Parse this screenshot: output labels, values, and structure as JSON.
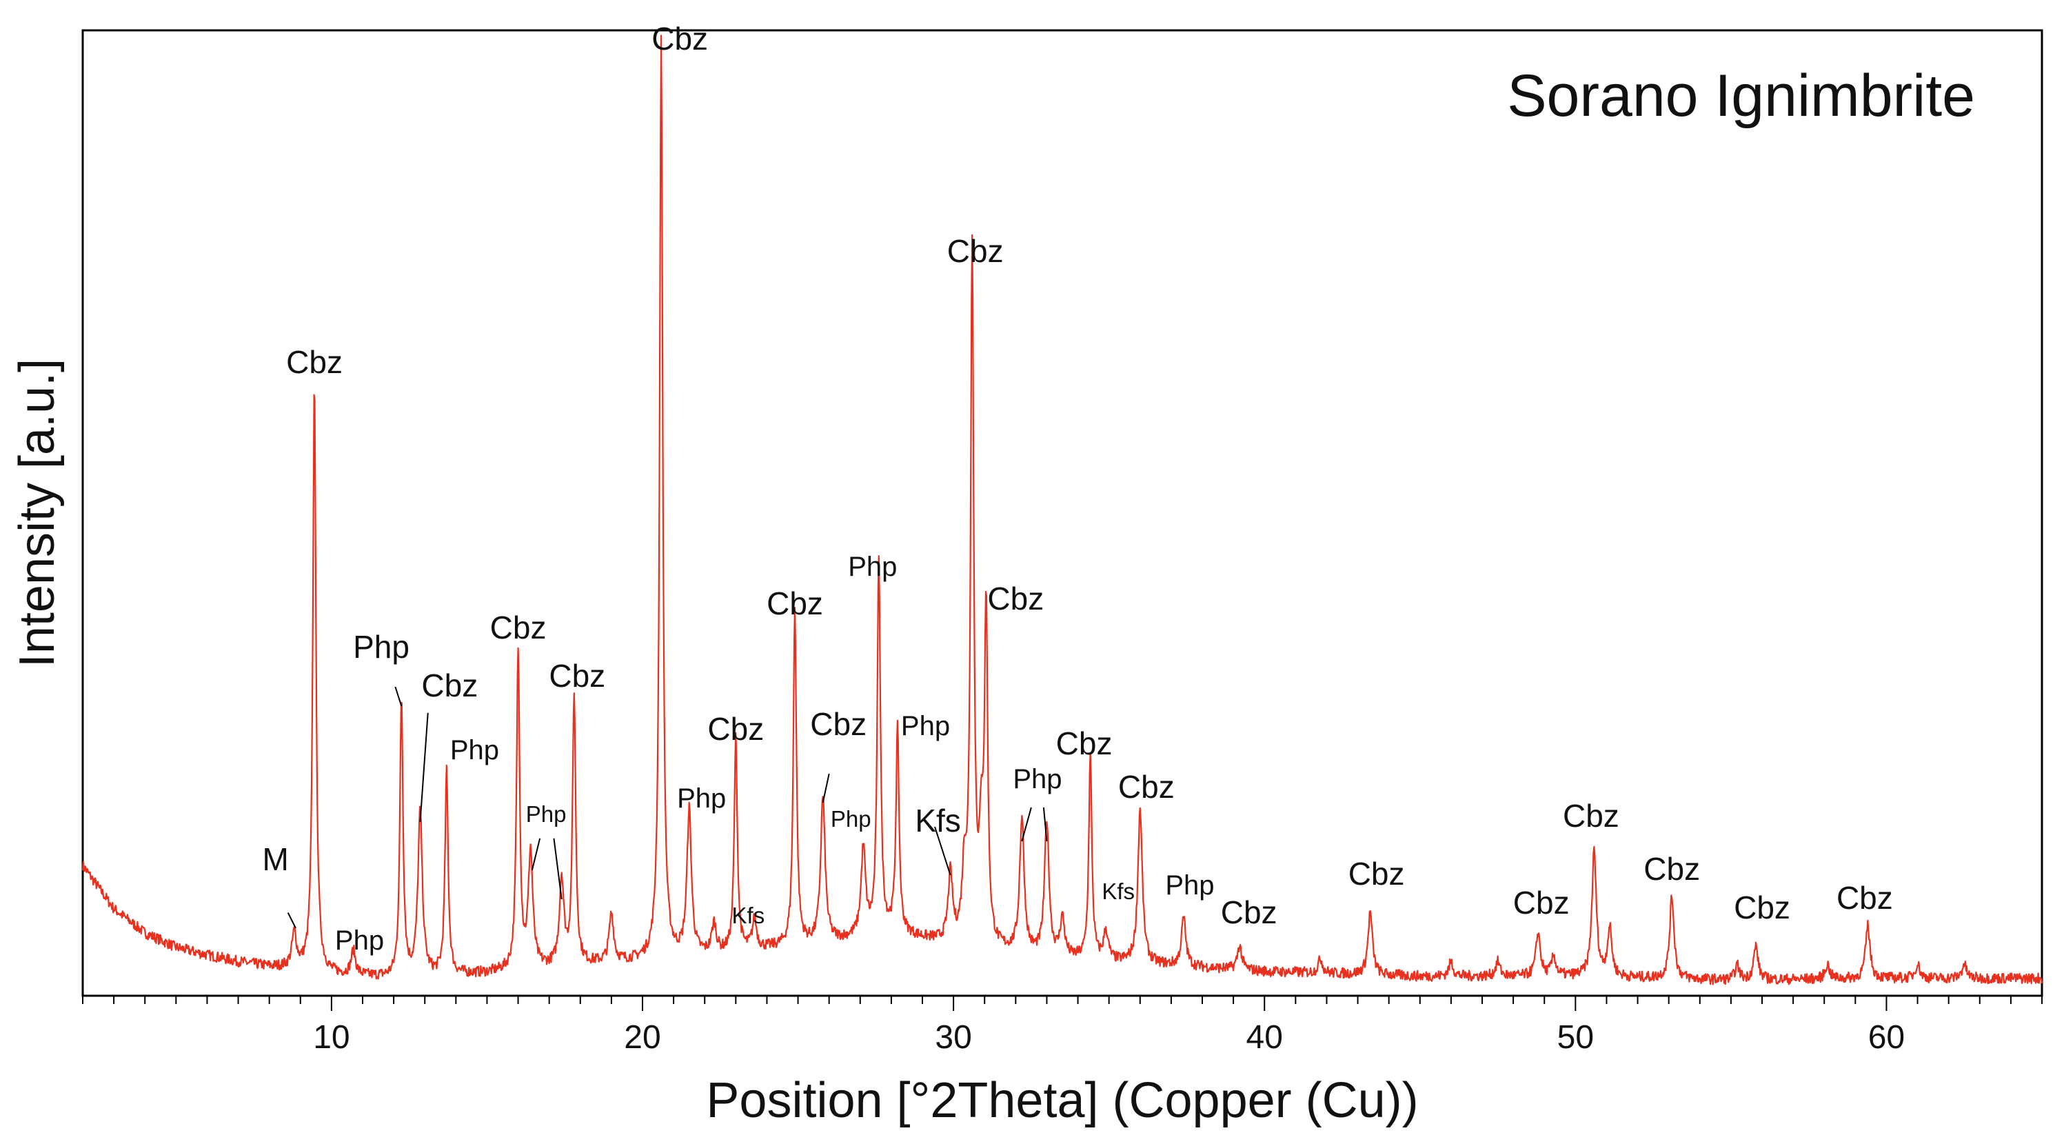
{
  "chart_data": {
    "type": "line",
    "title": "Sorano Ignimbrite",
    "xlabel": "Position [°2Theta] (Copper (Cu))",
    "ylabel": "Intensity [a.u.]",
    "xlim": [
      2,
      65
    ],
    "ylim": [
      0,
      100
    ],
    "grid": false,
    "series_color": "#e8301e",
    "x_tick_labels": [
      {
        "value": 10,
        "text": "10"
      },
      {
        "value": 20,
        "text": "20"
      },
      {
        "value": 30,
        "text": "30"
      },
      {
        "value": 40,
        "text": "40"
      },
      {
        "value": 50,
        "text": "50"
      },
      {
        "value": 60,
        "text": "60"
      }
    ],
    "baseline": [
      [
        2,
        13.5
      ],
      [
        3,
        9
      ],
      [
        4,
        6.5
      ],
      [
        5,
        5
      ],
      [
        6,
        4.2
      ],
      [
        7,
        3.5
      ],
      [
        8,
        3
      ],
      [
        9,
        2.8
      ],
      [
        10,
        2.2
      ],
      [
        12,
        1.8
      ],
      [
        15,
        2.3
      ],
      [
        18,
        3.2
      ],
      [
        20,
        3.6
      ],
      [
        23,
        4.5
      ],
      [
        26,
        5.5
      ],
      [
        28,
        6.5
      ],
      [
        30,
        5.2
      ],
      [
        33,
        4
      ],
      [
        36,
        3.3
      ],
      [
        40,
        2.5
      ],
      [
        45,
        2
      ],
      [
        50,
        2
      ],
      [
        55,
        1.6
      ],
      [
        60,
        1.8
      ],
      [
        65,
        1.8
      ]
    ],
    "peaks": [
      {
        "x": 8.8,
        "height": 3.5,
        "phase": "M"
      },
      {
        "x": 9.45,
        "height": 61,
        "phase": "Cbz"
      },
      {
        "x": 10.7,
        "height": 2.5,
        "phase": "Php"
      },
      {
        "x": 12.25,
        "height": 29,
        "phase": "Php"
      },
      {
        "x": 12.85,
        "height": 17,
        "phase": "Cbz"
      },
      {
        "x": 13.7,
        "height": 21,
        "phase": "Php"
      },
      {
        "x": 16.0,
        "height": 33,
        "phase": "Cbz"
      },
      {
        "x": 16.4,
        "height": 12,
        "phase": "Php"
      },
      {
        "x": 17.4,
        "height": 9,
        "phase": "Php"
      },
      {
        "x": 17.8,
        "height": 28,
        "phase": "Cbz"
      },
      {
        "x": 19.0,
        "height": 5,
        "phase": ""
      },
      {
        "x": 20.6,
        "height": 95,
        "phase": "Cbz"
      },
      {
        "x": 21.5,
        "height": 15,
        "phase": "Php"
      },
      {
        "x": 22.3,
        "height": 3,
        "phase": ""
      },
      {
        "x": 23.0,
        "height": 22,
        "phase": "Cbz"
      },
      {
        "x": 23.6,
        "height": 3,
        "phase": "Kfs"
      },
      {
        "x": 24.9,
        "height": 35,
        "phase": "Cbz"
      },
      {
        "x": 25.8,
        "height": 15,
        "phase": "Cbz"
      },
      {
        "x": 27.1,
        "height": 9,
        "phase": "Php"
      },
      {
        "x": 27.6,
        "height": 39,
        "phase": "Php"
      },
      {
        "x": 28.2,
        "height": 21,
        "phase": "Php"
      },
      {
        "x": 29.9,
        "height": 7,
        "phase": "Kfs"
      },
      {
        "x": 30.35,
        "height": 7,
        "phase": ""
      },
      {
        "x": 30.6,
        "height": 72,
        "phase": "Cbz"
      },
      {
        "x": 30.9,
        "height": 10,
        "phase": ""
      },
      {
        "x": 31.05,
        "height": 34,
        "phase": "Cbz"
      },
      {
        "x": 32.2,
        "height": 14,
        "phase": "Php"
      },
      {
        "x": 33.0,
        "height": 14,
        "phase": "Php"
      },
      {
        "x": 33.5,
        "height": 4,
        "phase": ""
      },
      {
        "x": 34.4,
        "height": 21,
        "phase": "Cbz"
      },
      {
        "x": 34.9,
        "height": 3,
        "phase": "Kfs"
      },
      {
        "x": 36.0,
        "height": 16,
        "phase": "Cbz"
      },
      {
        "x": 37.4,
        "height": 5,
        "phase": "Php"
      },
      {
        "x": 39.2,
        "height": 2.5,
        "phase": "Cbz"
      },
      {
        "x": 41.8,
        "height": 1.5,
        "phase": ""
      },
      {
        "x": 43.4,
        "height": 6.5,
        "phase": "Cbz"
      },
      {
        "x": 46.0,
        "height": 1.5,
        "phase": ""
      },
      {
        "x": 47.5,
        "height": 1.5,
        "phase": ""
      },
      {
        "x": 48.8,
        "height": 4.5,
        "phase": "Cbz"
      },
      {
        "x": 49.3,
        "height": 2,
        "phase": ""
      },
      {
        "x": 50.6,
        "height": 13,
        "phase": "Cbz"
      },
      {
        "x": 51.1,
        "height": 5,
        "phase": ""
      },
      {
        "x": 53.1,
        "height": 8.5,
        "phase": "Cbz"
      },
      {
        "x": 55.2,
        "height": 1.5,
        "phase": ""
      },
      {
        "x": 55.8,
        "height": 3.5,
        "phase": "Cbz"
      },
      {
        "x": 58.1,
        "height": 1.5,
        "phase": ""
      },
      {
        "x": 59.4,
        "height": 5.5,
        "phase": "Cbz"
      },
      {
        "x": 61.0,
        "height": 1.5,
        "phase": ""
      },
      {
        "x": 62.5,
        "height": 1.5,
        "phase": ""
      }
    ],
    "annotations": [
      {
        "text": "M",
        "x": 8.2,
        "y": 13,
        "size": "large",
        "leader": [
          [
            8.6,
            8.6
          ],
          [
            8.85,
            7
          ]
        ]
      },
      {
        "text": "Cbz",
        "x": 9.45,
        "y": 64.5,
        "size": "large"
      },
      {
        "text": "Php",
        "x": 10.9,
        "y": 4.8,
        "size": "medium"
      },
      {
        "text": "Php",
        "x": 11.6,
        "y": 35,
        "size": "large",
        "leader": [
          [
            12.05,
            32
          ],
          [
            12.25,
            30
          ]
        ]
      },
      {
        "text": "Cbz",
        "x": 13.8,
        "y": 31,
        "size": "large",
        "leader": [
          [
            13.1,
            29.3
          ],
          [
            12.85,
            18
          ]
        ]
      },
      {
        "text": "Php",
        "x": 14.6,
        "y": 24.5,
        "size": "medium"
      },
      {
        "text": "Cbz",
        "x": 16.0,
        "y": 37,
        "size": "large"
      },
      {
        "text": "Php",
        "x": 16.9,
        "y": 18,
        "size": "small",
        "leader": [
          [
            16.7,
            16.3
          ],
          [
            16.45,
            13
          ],
          [
            17.15,
            16.3
          ],
          [
            17.4,
            10
          ]
        ]
      },
      {
        "text": "Cbz",
        "x": 17.9,
        "y": 32,
        "size": "large"
      },
      {
        "text": "Cbz",
        "x": 21.2,
        "y": 98,
        "size": "large"
      },
      {
        "text": "Php",
        "x": 21.9,
        "y": 19.5,
        "size": "medium"
      },
      {
        "text": "Cbz",
        "x": 23.0,
        "y": 26.5,
        "size": "large"
      },
      {
        "text": "Kfs",
        "x": 23.4,
        "y": 7.5,
        "size": "small"
      },
      {
        "text": "Cbz",
        "x": 24.9,
        "y": 39.5,
        "size": "large"
      },
      {
        "text": "Cbz",
        "x": 26.3,
        "y": 27,
        "size": "large",
        "leader": [
          [
            26.0,
            23
          ],
          [
            25.8,
            20
          ]
        ]
      },
      {
        "text": "Php",
        "x": 26.7,
        "y": 17.5,
        "size": "small"
      },
      {
        "text": "Php",
        "x": 27.4,
        "y": 43.5,
        "size": "medium"
      },
      {
        "text": "Php",
        "x": 29.1,
        "y": 27,
        "size": "medium"
      },
      {
        "text": "Kfs",
        "x": 29.5,
        "y": 17,
        "size": "large",
        "leader": [
          [
            29.4,
            17.5
          ],
          [
            29.9,
            12.5
          ]
        ]
      },
      {
        "text": "Cbz",
        "x": 30.7,
        "y": 76,
        "size": "large"
      },
      {
        "text": "Cbz",
        "x": 32.0,
        "y": 40,
        "size": "large"
      },
      {
        "text": "Php",
        "x": 32.7,
        "y": 21.5,
        "size": "medium",
        "leader": [
          [
            32.5,
            19.5
          ],
          [
            32.2,
            16
          ],
          [
            32.9,
            19.5
          ],
          [
            33.0,
            16
          ]
        ]
      },
      {
        "text": "Cbz",
        "x": 34.2,
        "y": 25,
        "size": "large"
      },
      {
        "text": "Kfs",
        "x": 35.3,
        "y": 10,
        "size": "small"
      },
      {
        "text": "Cbz",
        "x": 36.2,
        "y": 20.5,
        "size": "large"
      },
      {
        "text": "Php",
        "x": 37.6,
        "y": 10.5,
        "size": "medium"
      },
      {
        "text": "Cbz",
        "x": 39.5,
        "y": 7.5,
        "size": "large"
      },
      {
        "text": "Cbz",
        "x": 43.6,
        "y": 11.5,
        "size": "large"
      },
      {
        "text": "Cbz",
        "x": 48.9,
        "y": 8.5,
        "size": "large"
      },
      {
        "text": "Cbz",
        "x": 50.5,
        "y": 17.5,
        "size": "large"
      },
      {
        "text": "Cbz",
        "x": 53.1,
        "y": 12,
        "size": "large"
      },
      {
        "text": "Cbz",
        "x": 56.0,
        "y": 8,
        "size": "large"
      },
      {
        "text": "Cbz",
        "x": 59.3,
        "y": 9,
        "size": "large"
      }
    ]
  }
}
